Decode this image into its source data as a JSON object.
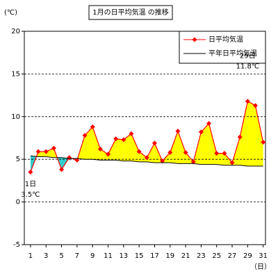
{
  "chart_data": {
    "type": "line",
    "title": "1月の日平均気温 の推移",
    "y_unit": "(℃)",
    "x_unit": "（日）",
    "x": [
      1,
      2,
      3,
      4,
      5,
      6,
      7,
      8,
      9,
      10,
      11,
      12,
      13,
      14,
      15,
      16,
      17,
      18,
      19,
      20,
      21,
      22,
      23,
      24,
      25,
      26,
      27,
      28,
      29,
      30,
      31
    ],
    "series": [
      {
        "name": "日平均気温",
        "color": "#ff0000",
        "values": [
          3.5,
          5.9,
          5.9,
          6.3,
          3.8,
          5.2,
          4.9,
          7.8,
          8.8,
          6.2,
          5.6,
          7.4,
          7.3,
          8.0,
          5.9,
          5.2,
          6.9,
          4.8,
          5.8,
          8.3,
          5.8,
          4.7,
          8.2,
          9.2,
          5.7,
          5.7,
          4.6,
          7.6,
          11.8,
          11.3,
          7.0
        ]
      },
      {
        "name": "平年日平均気温",
        "color": "#000000",
        "values": [
          5.4,
          5.3,
          5.3,
          5.2,
          5.2,
          5.1,
          5.1,
          5.0,
          5.0,
          4.9,
          4.9,
          4.9,
          4.8,
          4.8,
          4.7,
          4.7,
          4.6,
          4.6,
          4.6,
          4.5,
          4.5,
          4.5,
          4.4,
          4.4,
          4.4,
          4.3,
          4.3,
          4.3,
          4.2,
          4.2,
          4.2
        ]
      }
    ],
    "above_color": "#ffff00",
    "below_color": "#33cccc",
    "xlim": [
      0.2,
      31.3
    ],
    "xticks": [
      1,
      3,
      5,
      7,
      9,
      11,
      13,
      15,
      17,
      19,
      21,
      23,
      25,
      27,
      29,
      31
    ],
    "ylim": [
      -5,
      20
    ],
    "yticks": [
      -5,
      0,
      5,
      10,
      15,
      20
    ],
    "grid": true,
    "annotations": [
      {
        "text": "1日",
        "x": 1
      },
      {
        "text": "3.5℃",
        "x": 1
      },
      {
        "text": "29日",
        "x": 29
      },
      {
        "text": "11.8℃",
        "x": 29
      }
    ]
  }
}
